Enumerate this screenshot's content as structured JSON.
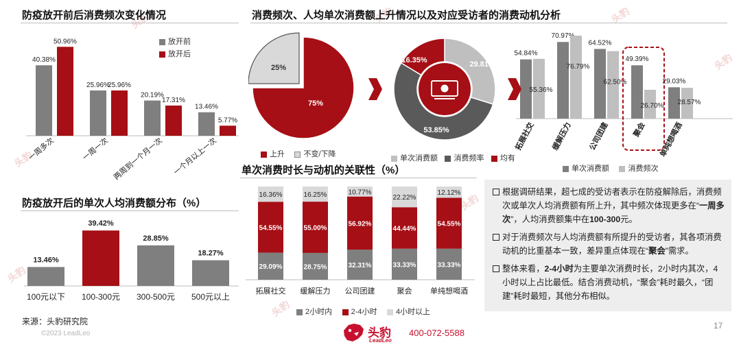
{
  "page": {
    "source": "来源：头豹研究院",
    "copyright": "©2023 LeadLeo",
    "page_number": "17",
    "brand_name": "头豹",
    "brand_sub": "LeadLeo",
    "phone": "400-072-5588",
    "watermark": "头豹"
  },
  "colors": {
    "red": "#A50F15",
    "dark_gray": "#7F7F7F",
    "mid_gray": "#5A5A5A",
    "light_gray": "#BFBFBF",
    "pale_gray": "#D9D9D9"
  },
  "chart_data": [
    {
      "id": "freq",
      "type": "bar",
      "title": "防疫放开前后消费频次变化情况",
      "categories": [
        "一周多次",
        "一周一次",
        "两周到一个月一次",
        "一个月以上一次"
      ],
      "series": [
        {
          "name": "放开前",
          "values": [
            40.38,
            25.96,
            20.19,
            13.46
          ],
          "labels": [
            "40.38%",
            "25.96%",
            "20.19%",
            "13.46%"
          ]
        },
        {
          "name": "放开后",
          "values": [
            50.96,
            25.96,
            17.31,
            5.77
          ],
          "labels": [
            "50.96%",
            "25.96%",
            "17.31%",
            "5.77%"
          ]
        }
      ],
      "legend_position": "top-right"
    },
    {
      "id": "amount",
      "type": "bar",
      "title": "防疫放开后的单次人均消费额分布（%）",
      "categories": [
        "100元以下",
        "100-300元",
        "300-500元",
        "500元以上"
      ],
      "values": [
        13.46,
        39.42,
        28.85,
        18.27
      ],
      "labels": [
        "13.46%",
        "39.42%",
        "28.85%",
        "18.27%"
      ],
      "highlight_index": 1
    },
    {
      "id": "pie1",
      "type": "pie",
      "section_title": "消费频次、人均单次消费额上升情况以及对应受访者的消费动机分析",
      "slices": [
        {
          "name": "上升",
          "value": 75,
          "label": "75%"
        },
        {
          "name": "不变/下降",
          "value": 25,
          "label": "25%"
        }
      ]
    },
    {
      "id": "donut",
      "type": "pie",
      "slices": [
        {
          "name": "单次消费额",
          "value": 29.81,
          "label": "29.81%"
        },
        {
          "name": "消费频率",
          "value": 53.85,
          "label": "53.85%"
        },
        {
          "name": "均有",
          "value": 16.35,
          "label": "16.35%"
        }
      ]
    },
    {
      "id": "motive",
      "type": "bar",
      "categories": [
        "拓展社交",
        "缓解压力",
        "公司团建",
        "聚会",
        "单纯想喝酒"
      ],
      "series": [
        {
          "name": "单次消费额",
          "values": [
            54.84,
            70.97,
            64.52,
            49.39,
            29.03
          ],
          "labels": [
            "54.84%",
            "70.97%",
            "64.52%",
            "49.39%",
            "29.03%"
          ]
        },
        {
          "name": "消费频次",
          "values": [
            55.36,
            76.79,
            62.5,
            26.7,
            28.57
          ],
          "labels": [
            "55.36%",
            "76.79%",
            "62.50%",
            "26.70%",
            "28.57%"
          ]
        }
      ],
      "highlight_category": "聚会"
    },
    {
      "id": "duration",
      "type": "bar",
      "stacked": true,
      "title": "单次消费时长与动机的关联性（%）",
      "categories": [
        "拓展社交",
        "缓解压力",
        "公司团建",
        "聚会",
        "单纯想喝酒"
      ],
      "series": [
        {
          "name": "2小时内",
          "values": [
            29.09,
            28.75,
            32.31,
            33.33,
            33.33
          ],
          "labels": [
            "29.09%",
            "28.75%",
            "32.31%",
            "33.33%",
            "33.33%"
          ]
        },
        {
          "name": "2-4小时",
          "values": [
            54.55,
            55.0,
            56.92,
            44.44,
            54.55
          ],
          "labels": [
            "54.55%",
            "55.00%",
            "56.92%",
            "44.44%",
            "54.55%"
          ]
        },
        {
          "name": "4小时以上",
          "values": [
            16.36,
            16.25,
            10.77,
            22.22,
            12.12
          ],
          "labels": [
            "16.36%",
            "16.25%",
            "10.77%",
            "22.22%",
            "12.12%"
          ]
        }
      ]
    }
  ],
  "notes": [
    {
      "parts": [
        {
          "t": "根据调研结果，超七成的受访者表示在防疫解除后，消费频次或单次人均消费额有所上升，其中频次体现更多在“"
        },
        {
          "t": "一周多次",
          "b": true
        },
        {
          "t": "”，人均消费额集中在"
        },
        {
          "t": "100-300",
          "b": true
        },
        {
          "t": "元。"
        }
      ]
    },
    {
      "parts": [
        {
          "t": "对于消费频次与人均消费额有所提升的受访者，其各项消费动机的比重基本一致，差异重点体现在“"
        },
        {
          "t": "聚会",
          "b": true
        },
        {
          "t": "”需求。"
        }
      ]
    },
    {
      "parts": [
        {
          "t": "整体来看，"
        },
        {
          "t": "2-4小时",
          "b": true
        },
        {
          "t": "为主要单次消费时长，2小时内其次，4小时以上占比最低。结合消费动机，“聚会”耗时最久，“团建”耗时最短，其他分布相似。"
        }
      ]
    }
  ]
}
